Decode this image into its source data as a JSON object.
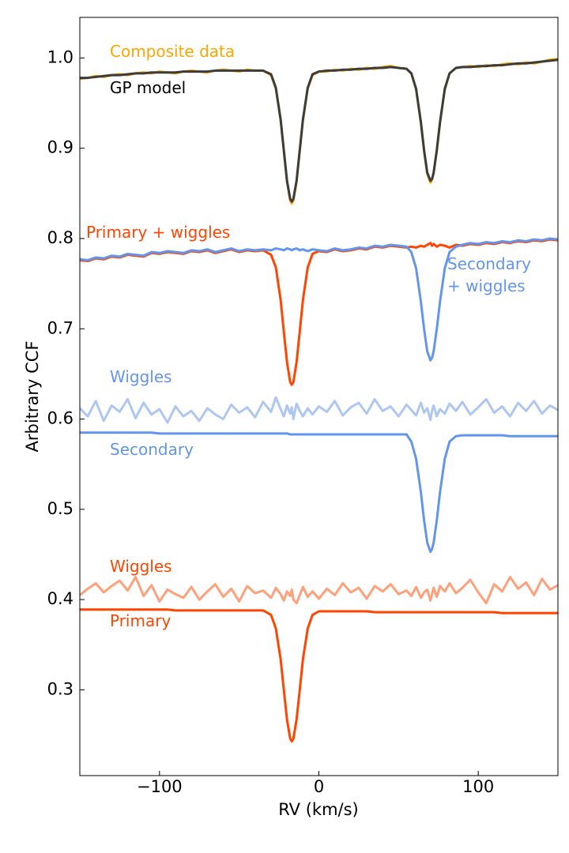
{
  "chart_data": {
    "type": "line",
    "xlabel": "RV (km/s)",
    "ylabel": "Arbitrary CCF",
    "xlim": [
      -150,
      150
    ],
    "ylim": [
      0.205,
      1.045
    ],
    "xticks": [
      {
        "value": -100,
        "label": "−100"
      },
      0,
      100
    ],
    "yticks": [
      0.3,
      0.4,
      0.5,
      0.6,
      0.7,
      0.8,
      0.9,
      {
        "value": 1,
        "label": "1.0"
      }
    ],
    "x": [
      -150,
      -145,
      -140,
      -135,
      -130,
      -125,
      -120,
      -115,
      -110,
      -105,
      -100,
      -95,
      -90,
      -85,
      -80,
      -75,
      -70,
      -65,
      -60,
      -55,
      -50,
      -45,
      -40,
      -35,
      -30,
      -27,
      -24,
      -22,
      -20,
      -18,
      -17,
      -16,
      -14,
      -12,
      -10,
      -7,
      -4,
      0,
      5,
      10,
      15,
      20,
      25,
      30,
      35,
      40,
      45,
      50,
      55,
      58,
      61,
      64,
      66,
      68,
      70,
      71,
      72,
      74,
      76,
      79,
      82,
      86,
      90,
      95,
      100,
      105,
      110,
      115,
      120,
      125,
      130,
      135,
      140,
      145,
      150
    ],
    "series": [
      {
        "name": "Wiggles",
        "color": "#aec7f0",
        "label_color": "#6495ed",
        "values": [
          0.612,
          0.603,
          0.62,
          0.598,
          0.615,
          0.608,
          0.622,
          0.601,
          0.618,
          0.605,
          0.611,
          0.596,
          0.614,
          0.603,
          0.609,
          0.598,
          0.612,
          0.605,
          0.6,
          0.616,
          0.607,
          0.613,
          0.602,
          0.619,
          0.608,
          0.624,
          0.611,
          0.603,
          0.615,
          0.606,
          0.613,
          0.6,
          0.617,
          0.609,
          0.603,
          0.612,
          0.605,
          0.614,
          0.608,
          0.62,
          0.604,
          0.613,
          0.618,
          0.606,
          0.622,
          0.609,
          0.614,
          0.603,
          0.616,
          0.61,
          0.604,
          0.618,
          0.607,
          0.612,
          0.599,
          0.609,
          0.615,
          0.603,
          0.611,
          0.606,
          0.617,
          0.609,
          0.619,
          0.605,
          0.613,
          0.622,
          0.607,
          0.614,
          0.603,
          0.618,
          0.609,
          0.62,
          0.606,
          0.615,
          0.61
        ]
      },
      {
        "name": "Wiggles",
        "color": "#ffa07a",
        "label_color": "#ff4500",
        "values": [
          0.405,
          0.412,
          0.418,
          0.408,
          0.415,
          0.421,
          0.41,
          0.425,
          0.404,
          0.416,
          0.398,
          0.411,
          0.406,
          0.402,
          0.414,
          0.4,
          0.409,
          0.417,
          0.403,
          0.412,
          0.398,
          0.415,
          0.407,
          0.41,
          0.402,
          0.413,
          0.406,
          0.399,
          0.409,
          0.404,
          0.411,
          0.4,
          0.396,
          0.405,
          0.414,
          0.403,
          0.409,
          0.401,
          0.412,
          0.405,
          0.418,
          0.408,
          0.413,
          0.401,
          0.415,
          0.409,
          0.417,
          0.406,
          0.41,
          0.404,
          0.414,
          0.402,
          0.408,
          0.411,
          0.399,
          0.406,
          0.413,
          0.403,
          0.415,
          0.409,
          0.418,
          0.407,
          0.413,
          0.422,
          0.408,
          0.396,
          0.417,
          0.409,
          0.425,
          0.412,
          0.419,
          0.405,
          0.423,
          0.411,
          0.416
        ]
      },
      {
        "name": "Composite data",
        "color": "#ffa500",
        "values": [
          0.977,
          0.978,
          0.98,
          0.979,
          0.981,
          0.982,
          0.981,
          0.983,
          0.984,
          0.983,
          0.985,
          0.984,
          0.983,
          0.985,
          0.986,
          0.985,
          0.984,
          0.986,
          0.987,
          0.986,
          0.985,
          0.987,
          0.986,
          0.986,
          0.981,
          0.966,
          0.931,
          0.897,
          0.863,
          0.842,
          0.839,
          0.842,
          0.863,
          0.897,
          0.931,
          0.966,
          0.981,
          0.985,
          0.985,
          0.987,
          0.986,
          0.988,
          0.987,
          0.989,
          0.988,
          0.99,
          0.991,
          0.989,
          0.988,
          0.983,
          0.965,
          0.928,
          0.897,
          0.872,
          0.862,
          0.865,
          0.872,
          0.897,
          0.928,
          0.965,
          0.983,
          0.989,
          0.99,
          0.991,
          0.99,
          0.992,
          0.991,
          0.993,
          0.994,
          0.993,
          0.995,
          0.994,
          0.996,
          0.998,
          0.999
        ]
      },
      {
        "name": "GP model",
        "color": "#3c3c3c",
        "values": [
          0.978,
          0.978,
          0.979,
          0.98,
          0.981,
          0.981,
          0.982,
          0.983,
          0.983,
          0.984,
          0.984,
          0.984,
          0.984,
          0.985,
          0.985,
          0.985,
          0.985,
          0.986,
          0.986,
          0.986,
          0.986,
          0.986,
          0.986,
          0.986,
          0.982,
          0.967,
          0.932,
          0.898,
          0.864,
          0.844,
          0.841,
          0.844,
          0.864,
          0.898,
          0.932,
          0.967,
          0.982,
          0.985,
          0.986,
          0.986,
          0.987,
          0.987,
          0.988,
          0.988,
          0.989,
          0.989,
          0.99,
          0.989,
          0.988,
          0.983,
          0.966,
          0.929,
          0.898,
          0.873,
          0.864,
          0.866,
          0.873,
          0.898,
          0.929,
          0.966,
          0.983,
          0.989,
          0.99,
          0.99,
          0.991,
          0.991,
          0.992,
          0.992,
          0.993,
          0.994,
          0.994,
          0.995,
          0.996,
          0.997,
          0.998
        ]
      },
      {
        "name": "Primary + wiggles",
        "color": "#ff4500",
        "values": [
          0.776,
          0.775,
          0.778,
          0.777,
          0.78,
          0.779,
          0.782,
          0.781,
          0.78,
          0.784,
          0.783,
          0.785,
          0.784,
          0.783,
          0.786,
          0.785,
          0.787,
          0.784,
          0.786,
          0.788,
          0.785,
          0.787,
          0.786,
          0.787,
          0.782,
          0.768,
          0.732,
          0.697,
          0.663,
          0.641,
          0.638,
          0.641,
          0.663,
          0.697,
          0.732,
          0.768,
          0.783,
          0.786,
          0.785,
          0.788,
          0.786,
          0.787,
          0.789,
          0.788,
          0.791,
          0.79,
          0.792,
          0.791,
          0.79,
          0.791,
          0.79,
          0.792,
          0.791,
          0.793,
          0.795,
          0.792,
          0.794,
          0.791,
          0.793,
          0.792,
          0.79,
          0.793,
          0.792,
          0.794,
          0.793,
          0.795,
          0.794,
          0.796,
          0.795,
          0.797,
          0.796,
          0.798,
          0.797,
          0.799,
          0.798
        ]
      },
      {
        "name": "Secondary + wiggles",
        "color": "#6495ed",
        "values": [
          0.777,
          0.776,
          0.779,
          0.778,
          0.781,
          0.78,
          0.783,
          0.782,
          0.781,
          0.785,
          0.784,
          0.786,
          0.785,
          0.784,
          0.787,
          0.786,
          0.788,
          0.785,
          0.787,
          0.789,
          0.786,
          0.788,
          0.787,
          0.788,
          0.787,
          0.789,
          0.788,
          0.787,
          0.789,
          0.788,
          0.787,
          0.788,
          0.789,
          0.787,
          0.788,
          0.786,
          0.788,
          0.787,
          0.786,
          0.789,
          0.787,
          0.788,
          0.79,
          0.789,
          0.792,
          0.791,
          0.793,
          0.792,
          0.791,
          0.785,
          0.767,
          0.73,
          0.7,
          0.675,
          0.665,
          0.668,
          0.675,
          0.7,
          0.73,
          0.767,
          0.785,
          0.791,
          0.793,
          0.795,
          0.794,
          0.796,
          0.795,
          0.797,
          0.796,
          0.798,
          0.797,
          0.799,
          0.798,
          0.8,
          0.799
        ]
      },
      {
        "name": "Secondary",
        "color": "#6495ed",
        "values": [
          0.585,
          0.585,
          0.585,
          0.585,
          0.585,
          0.585,
          0.585,
          0.585,
          0.585,
          0.585,
          0.584,
          0.584,
          0.584,
          0.584,
          0.584,
          0.584,
          0.584,
          0.584,
          0.584,
          0.584,
          0.584,
          0.584,
          0.584,
          0.584,
          0.584,
          0.584,
          0.584,
          0.584,
          0.584,
          0.583,
          0.583,
          0.583,
          0.583,
          0.583,
          0.583,
          0.583,
          0.583,
          0.583,
          0.583,
          0.583,
          0.583,
          0.583,
          0.583,
          0.583,
          0.583,
          0.583,
          0.583,
          0.583,
          0.583,
          0.575,
          0.556,
          0.519,
          0.488,
          0.463,
          0.453,
          0.456,
          0.463,
          0.488,
          0.519,
          0.556,
          0.575,
          0.581,
          0.582,
          0.582,
          0.582,
          0.582,
          0.582,
          0.582,
          0.581,
          0.581,
          0.581,
          0.581,
          0.581,
          0.581,
          0.581
        ]
      },
      {
        "name": "Primary",
        "color": "#ff4500",
        "values": [
          0.389,
          0.389,
          0.389,
          0.389,
          0.389,
          0.389,
          0.389,
          0.389,
          0.389,
          0.389,
          0.389,
          0.389,
          0.388,
          0.388,
          0.388,
          0.388,
          0.388,
          0.388,
          0.388,
          0.388,
          0.388,
          0.388,
          0.388,
          0.388,
          0.383,
          0.368,
          0.334,
          0.3,
          0.267,
          0.246,
          0.243,
          0.246,
          0.267,
          0.3,
          0.334,
          0.368,
          0.383,
          0.387,
          0.387,
          0.387,
          0.387,
          0.387,
          0.387,
          0.387,
          0.386,
          0.386,
          0.386,
          0.386,
          0.386,
          0.386,
          0.386,
          0.386,
          0.386,
          0.386,
          0.386,
          0.386,
          0.386,
          0.386,
          0.386,
          0.386,
          0.386,
          0.386,
          0.386,
          0.386,
          0.386,
          0.386,
          0.386,
          0.385,
          0.385,
          0.385,
          0.385,
          0.385,
          0.385,
          0.385,
          0.385
        ]
      }
    ]
  }
}
